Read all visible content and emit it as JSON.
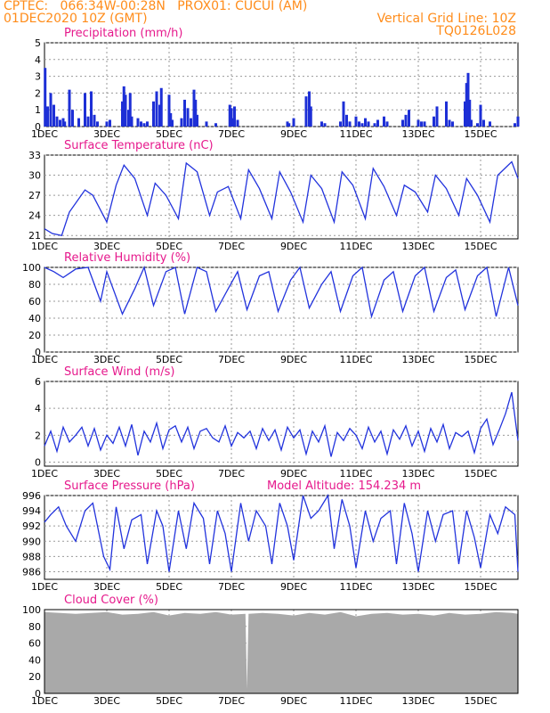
{
  "header": {
    "line1_left": "CPTEC:   066:34W-00:28N   PROX01: CUCUI (AM)",
    "line2_left": "01DEC2020 10Z (GMT)",
    "line2_right": "Vertical Grid Line: 10Z",
    "line3_right": "TQ0126L028"
  },
  "x_ticks": [
    "1DEC",
    "3DEC",
    "5DEC",
    "7DEC",
    "9DEC",
    "11DEC",
    "13DEC",
    "15DEC"
  ],
  "x_tick_days": [
    0,
    2,
    4,
    6,
    8,
    10,
    12,
    14
  ],
  "x_range_days": [
    0,
    15.2
  ],
  "colors": {
    "header": "#ff8c1a",
    "title": "#e6198c",
    "series": "#2233dd",
    "bars": "#1d2fd6",
    "cloud": "#a9a9a9"
  },
  "chart_data": [
    {
      "type": "bar",
      "title": "Precipitation (mm/h)",
      "ylim": [
        0,
        5
      ],
      "yticks": [
        "0",
        "1",
        "2",
        "3",
        "4",
        "5"
      ],
      "x_days": [
        0.02,
        0.1,
        0.2,
        0.3,
        0.4,
        0.5,
        0.6,
        0.65,
        0.8,
        0.9,
        1.1,
        1.3,
        1.4,
        1.5,
        1.6,
        1.7,
        2.0,
        2.1,
        2.5,
        2.55,
        2.6,
        2.7,
        2.75,
        2.8,
        3.0,
        3.1,
        3.2,
        3.3,
        3.5,
        3.6,
        3.7,
        3.75,
        4.0,
        4.05,
        4.1,
        4.4,
        4.5,
        4.6,
        4.7,
        4.8,
        4.85,
        4.9,
        5.2,
        5.5,
        5.95,
        6.0,
        6.05,
        6.1,
        6.2,
        7.8,
        7.85,
        8.0,
        8.4,
        8.5,
        8.55,
        8.9,
        9.0,
        9.5,
        9.6,
        9.7,
        9.8,
        10.0,
        10.1,
        10.2,
        10.3,
        10.4,
        10.6,
        10.7,
        10.9,
        11.0,
        11.5,
        11.6,
        11.7,
        12.0,
        12.1,
        12.2,
        12.5,
        12.6,
        12.9,
        13.0,
        13.1,
        13.5,
        13.55,
        13.6,
        13.65,
        13.7,
        13.9,
        14.0,
        14.1,
        14.3,
        15.1,
        15.2
      ],
      "values": [
        3.5,
        1.2,
        2.0,
        1.3,
        0.6,
        0.4,
        0.5,
        0.3,
        2.2,
        1.0,
        0.5,
        2.0,
        0.6,
        2.1,
        0.7,
        0.3,
        0.3,
        0.4,
        1.5,
        2.4,
        1.9,
        1.0,
        2.0,
        0.6,
        0.5,
        0.3,
        0.2,
        0.3,
        1.5,
        2.1,
        1.3,
        2.3,
        1.9,
        0.8,
        0.4,
        0.5,
        1.6,
        1.1,
        0.5,
        2.2,
        1.6,
        0.7,
        0.3,
        0.2,
        1.3,
        1.1,
        0.5,
        1.2,
        0.4,
        0.3,
        0.2,
        0.5,
        1.8,
        2.1,
        1.2,
        0.3,
        0.2,
        0.3,
        1.5,
        0.7,
        0.3,
        0.6,
        0.3,
        0.2,
        0.5,
        0.3,
        0.2,
        0.4,
        0.6,
        0.3,
        0.4,
        0.7,
        1.0,
        0.4,
        0.3,
        0.3,
        0.6,
        1.2,
        1.5,
        0.4,
        0.3,
        1.5,
        2.6,
        3.2,
        1.6,
        0.4,
        0.2,
        1.3,
        0.4,
        0.3,
        0.2,
        0.6
      ]
    },
    {
      "type": "line",
      "title": "Surface Temperature (nC)",
      "ylim": [
        20.5,
        33
      ],
      "yticks": [
        "21",
        "24",
        "27",
        "30",
        "33"
      ],
      "ytick_values": [
        21,
        24,
        27,
        30,
        33
      ],
      "x_days": [
        0,
        0.25,
        0.55,
        0.8,
        1.3,
        1.55,
        2.0,
        2.3,
        2.55,
        2.9,
        3.3,
        3.55,
        3.9,
        4.3,
        4.55,
        4.9,
        5.3,
        5.55,
        5.9,
        6.3,
        6.55,
        6.9,
        7.3,
        7.55,
        7.9,
        8.3,
        8.55,
        8.9,
        9.3,
        9.55,
        9.9,
        10.3,
        10.55,
        10.9,
        11.3,
        11.55,
        11.9,
        12.3,
        12.55,
        12.9,
        13.3,
        13.55,
        13.9,
        14.3,
        14.55,
        15.0,
        15.2
      ],
      "values": [
        22.0,
        21.3,
        21.0,
        24.5,
        27.8,
        27.0,
        23.0,
        28.5,
        31.5,
        29.5,
        24.0,
        28.8,
        27.0,
        23.5,
        31.8,
        30.5,
        24.0,
        27.5,
        28.3,
        23.5,
        30.8,
        28.0,
        23.5,
        30.5,
        27.5,
        23.0,
        30.0,
        28.0,
        23.0,
        30.5,
        28.5,
        23.5,
        31.0,
        28.3,
        24.0,
        28.5,
        27.5,
        24.5,
        30.0,
        28.0,
        24.0,
        29.5,
        27.0,
        23.0,
        30.0,
        32.0,
        29.5
      ]
    },
    {
      "type": "line",
      "title": "Relative Humidity (%)",
      "ylim": [
        0,
        100
      ],
      "yticks": [
        "0",
        "20",
        "40",
        "60",
        "80",
        "100"
      ],
      "ytick_values": [
        0,
        20,
        40,
        60,
        80,
        100
      ],
      "x_days": [
        0,
        0.3,
        0.6,
        1.0,
        1.4,
        1.8,
        2.0,
        2.5,
        2.9,
        3.2,
        3.5,
        3.9,
        4.2,
        4.5,
        4.9,
        5.2,
        5.5,
        5.9,
        6.2,
        6.5,
        6.9,
        7.2,
        7.5,
        7.9,
        8.2,
        8.5,
        8.9,
        9.2,
        9.5,
        9.9,
        10.2,
        10.5,
        10.9,
        11.2,
        11.5,
        11.9,
        12.2,
        12.5,
        12.9,
        13.2,
        13.5,
        13.9,
        14.2,
        14.5,
        14.9,
        15.2
      ],
      "values": [
        100,
        95,
        88,
        98,
        100,
        60,
        95,
        45,
        75,
        100,
        55,
        95,
        100,
        45,
        100,
        95,
        48,
        75,
        95,
        50,
        90,
        95,
        48,
        85,
        100,
        52,
        80,
        95,
        48,
        90,
        100,
        42,
        85,
        95,
        48,
        90,
        100,
        48,
        88,
        97,
        50,
        90,
        100,
        42,
        100,
        55
      ]
    },
    {
      "type": "line",
      "title": "Surface Wind (m/s)",
      "ylim": [
        -0.3,
        6
      ],
      "yticks": [
        "0",
        "2",
        "4",
        "6"
      ],
      "ytick_values": [
        0,
        2,
        4,
        6
      ],
      "x_days": [
        0,
        0.2,
        0.4,
        0.6,
        0.8,
        1.0,
        1.2,
        1.4,
        1.6,
        1.8,
        2.0,
        2.2,
        2.4,
        2.6,
        2.8,
        3.0,
        3.2,
        3.4,
        3.6,
        3.8,
        4.0,
        4.2,
        4.4,
        4.6,
        4.8,
        5.0,
        5.2,
        5.4,
        5.6,
        5.8,
        6.0,
        6.2,
        6.4,
        6.6,
        6.8,
        7.0,
        7.2,
        7.4,
        7.6,
        7.8,
        8.0,
        8.2,
        8.4,
        8.6,
        8.8,
        9.0,
        9.2,
        9.4,
        9.6,
        9.8,
        10.0,
        10.2,
        10.4,
        10.6,
        10.8,
        11.0,
        11.2,
        11.4,
        11.6,
        11.8,
        12.0,
        12.2,
        12.4,
        12.6,
        12.8,
        13.0,
        13.2,
        13.4,
        13.6,
        13.8,
        14.0,
        14.2,
        14.4,
        14.6,
        14.8,
        15.0,
        15.2
      ],
      "values": [
        1.2,
        2.3,
        0.8,
        2.6,
        1.5,
        2.0,
        2.6,
        1.2,
        2.5,
        0.9,
        2.0,
        1.4,
        2.6,
        1.2,
        2.8,
        0.5,
        2.3,
        1.5,
        2.9,
        1.0,
        2.4,
        2.7,
        1.5,
        2.6,
        1.0,
        2.3,
        2.5,
        1.8,
        1.5,
        2.7,
        1.2,
        2.2,
        1.8,
        2.3,
        1.0,
        2.5,
        1.6,
        2.4,
        0.9,
        2.6,
        1.8,
        2.4,
        0.6,
        2.3,
        1.5,
        2.7,
        0.4,
        2.2,
        1.6,
        2.5,
        2.0,
        1.0,
        2.6,
        1.5,
        2.3,
        0.6,
        2.4,
        1.7,
        2.7,
        1.2,
        2.3,
        0.8,
        2.5,
        1.5,
        2.8,
        1.0,
        2.2,
        1.9,
        2.3,
        0.7,
        2.5,
        3.2,
        1.3,
        2.4,
        3.6,
        5.2,
        1.6
      ]
    },
    {
      "type": "line",
      "title": "Surface Pressure (hPa)",
      "annotation": "Model Altitude: 154.234 m",
      "ylim": [
        985,
        996
      ],
      "yticks": [
        "986",
        "988",
        "990",
        "992",
        "994",
        "996"
      ],
      "ytick_values": [
        986,
        988,
        990,
        992,
        994,
        996
      ],
      "x_days": [
        0,
        0.2,
        0.45,
        0.7,
        1.0,
        1.3,
        1.55,
        1.9,
        2.1,
        2.3,
        2.55,
        2.8,
        3.1,
        3.3,
        3.6,
        3.8,
        4.0,
        4.3,
        4.55,
        4.8,
        5.1,
        5.3,
        5.55,
        5.8,
        6.0,
        6.3,
        6.55,
        6.8,
        7.1,
        7.3,
        7.55,
        7.8,
        8.0,
        8.3,
        8.55,
        8.8,
        9.1,
        9.3,
        9.55,
        9.8,
        10.0,
        10.3,
        10.55,
        10.8,
        11.1,
        11.3,
        11.55,
        11.8,
        12.0,
        12.3,
        12.55,
        12.8,
        13.1,
        13.3,
        13.55,
        13.8,
        14.0,
        14.3,
        14.55,
        14.8,
        15.1,
        15.2
      ],
      "values": [
        992.5,
        993.5,
        994.5,
        992,
        990,
        994,
        995,
        988,
        986.3,
        994.5,
        989,
        992.8,
        993.5,
        987,
        994,
        992,
        986,
        994,
        989,
        995,
        993,
        987,
        994,
        991,
        986,
        995,
        990,
        994,
        992,
        987,
        995,
        992,
        987.5,
        996,
        993,
        994,
        996,
        989,
        995.5,
        992,
        986.5,
        994,
        990,
        993,
        994,
        987,
        995,
        991,
        986,
        994,
        990,
        993.5,
        994,
        987,
        994,
        990.5,
        986.5,
        993.5,
        991,
        994.5,
        993.5,
        986
      ]
    },
    {
      "type": "area",
      "title": "Cloud Cover (%)",
      "ylim": [
        0,
        100
      ],
      "yticks": [
        "0",
        "20",
        "40",
        "60",
        "80",
        "100"
      ],
      "ytick_values": [
        0,
        20,
        40,
        60,
        80,
        100
      ],
      "x_days": [
        0,
        0.5,
        1.0,
        1.5,
        2.0,
        2.5,
        3.0,
        3.5,
        4.0,
        4.5,
        5.0,
        5.5,
        6.0,
        6.45,
        6.5,
        6.55,
        7.0,
        7.5,
        8.0,
        8.5,
        9.0,
        9.5,
        10.0,
        10.5,
        11.0,
        11.5,
        12.0,
        12.5,
        13.0,
        13.5,
        14.0,
        14.5,
        15.0,
        15.2
      ],
      "values": [
        97,
        96,
        95,
        96,
        97,
        94,
        95,
        97,
        93,
        96,
        95,
        97,
        94,
        95,
        5,
        95,
        96,
        95,
        93,
        96,
        94,
        97,
        92,
        95,
        96,
        94,
        95,
        93,
        96,
        94,
        95,
        97,
        96,
        95
      ]
    }
  ]
}
